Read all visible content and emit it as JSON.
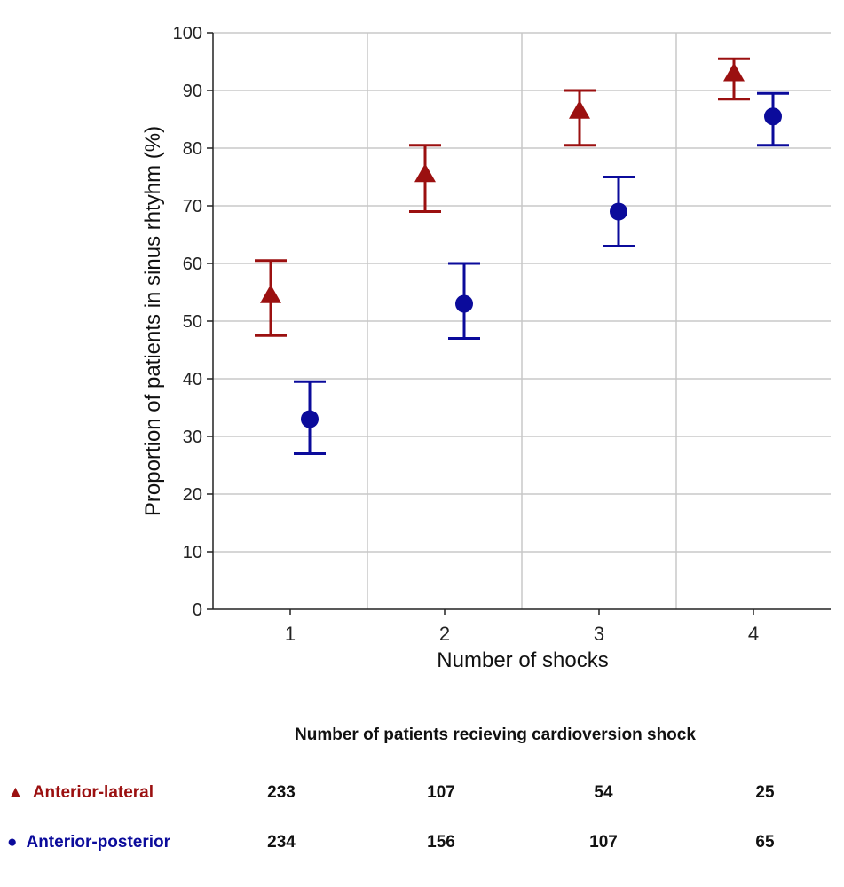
{
  "chart_data": {
    "type": "scatter",
    "xlabel": "Number of shocks",
    "ylabel": "Proportion of patients in sinus rhtyhm (%)",
    "categories": [
      "1",
      "2",
      "3",
      "4"
    ],
    "ylim": [
      0,
      100
    ],
    "yticks": [
      "0",
      "10",
      "20",
      "30",
      "40",
      "50",
      "60",
      "70",
      "80",
      "90",
      "100"
    ],
    "grid": true,
    "series": [
      {
        "name": "Anterior-lateral",
        "marker": "triangle",
        "color": "#9b1010",
        "values": [
          54.5,
          75.5,
          86.5,
          93.0
        ],
        "lower": [
          47.5,
          69.0,
          80.5,
          88.5
        ],
        "upper": [
          60.5,
          80.5,
          90.0,
          95.5
        ]
      },
      {
        "name": "Anterior-posterior",
        "marker": "circle",
        "color": "#0b0b9b",
        "values": [
          33.0,
          53.0,
          69.0,
          85.5
        ],
        "lower": [
          27.0,
          47.0,
          63.0,
          80.5
        ],
        "upper": [
          39.5,
          60.0,
          75.0,
          89.5
        ]
      }
    ]
  },
  "table": {
    "title": "Number of patients recieving cardioversion shock",
    "rows": [
      {
        "label": "Anterior-lateral",
        "marker": "▲",
        "color": "#9b1010",
        "counts": [
          "233",
          "107",
          "54",
          "25"
        ]
      },
      {
        "label": "Anterior-posterior",
        "marker": "●",
        "color": "#0b0b9b",
        "counts": [
          "234",
          "156",
          "107",
          "65"
        ]
      }
    ]
  }
}
